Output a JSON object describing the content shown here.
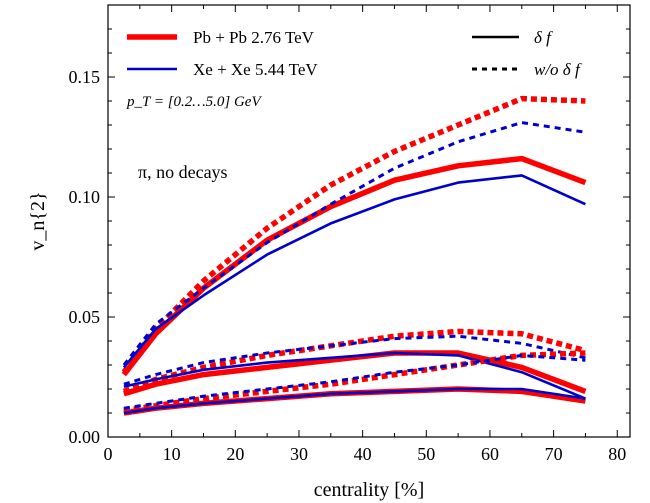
{
  "chart_data": {
    "type": "line",
    "xlabel": "centrality [%]",
    "ylabel": "v_n{2}",
    "xlim": [
      0,
      82
    ],
    "ylim": [
      0,
      0.18
    ],
    "xticks": [
      0,
      10,
      20,
      30,
      40,
      50,
      60,
      70,
      80
    ],
    "yticks": [
      0.0,
      0.05,
      0.1,
      0.15
    ],
    "ytick_labels": [
      "0.00",
      "0.05",
      "0.10",
      "0.15"
    ],
    "legend": {
      "placement": "top",
      "systems": [
        {
          "label": "Pb + Pb 2.76 TeV",
          "color": "#ff0000"
        },
        {
          "label": "Xe + Xe 5.44 TeV",
          "color": "#0000cc"
        }
      ],
      "styles": [
        {
          "label": "δ f",
          "style": "solid"
        },
        {
          "label": "w/o δ f",
          "style": "dashed"
        }
      ]
    },
    "annotations": {
      "pt_range": "p_T = [0.2…5.0] GeV",
      "particle": "π, no decays"
    },
    "x": [
      2.5,
      7.5,
      15,
      25,
      35,
      45,
      55,
      65,
      75
    ],
    "series": [
      {
        "system": "Pb + Pb 2.76 TeV",
        "style": "solid",
        "color": "#ff0000",
        "values": [
          0.026,
          0.043,
          0.062,
          0.082,
          0.096,
          0.107,
          0.113,
          0.116,
          0.106
        ]
      },
      {
        "system": "Pb + Pb 2.76 TeV",
        "style": "dashed",
        "color": "#ff0000",
        "values": [
          0.027,
          0.045,
          0.065,
          0.087,
          0.105,
          0.119,
          0.13,
          0.141,
          0.14
        ]
      },
      {
        "system": "Xe + Xe 5.44 TeV",
        "style": "solid",
        "color": "#0000cc",
        "values": [
          0.029,
          0.045,
          0.059,
          0.076,
          0.089,
          0.099,
          0.106,
          0.109,
          0.097
        ]
      },
      {
        "system": "Xe + Xe 5.44 TeV",
        "style": "dashed",
        "color": "#0000cc",
        "values": [
          0.03,
          0.047,
          0.062,
          0.081,
          0.097,
          0.112,
          0.123,
          0.131,
          0.127
        ]
      },
      {
        "system": "Pb + Pb 2.76 TeV",
        "style": "solid",
        "color": "#ff0000",
        "values": [
          0.018,
          0.022,
          0.026,
          0.029,
          0.032,
          0.035,
          0.035,
          0.029,
          0.019
        ]
      },
      {
        "system": "Pb + Pb 2.76 TeV",
        "style": "dashed",
        "color": "#ff0000",
        "values": [
          0.019,
          0.024,
          0.029,
          0.034,
          0.038,
          0.042,
          0.044,
          0.043,
          0.036
        ]
      },
      {
        "system": "Xe + Xe 5.44 TeV",
        "style": "solid",
        "color": "#0000cc",
        "values": [
          0.021,
          0.024,
          0.028,
          0.031,
          0.033,
          0.035,
          0.034,
          0.027,
          0.016
        ]
      },
      {
        "system": "Xe + Xe 5.44 TeV",
        "style": "dashed",
        "color": "#0000cc",
        "values": [
          0.022,
          0.026,
          0.031,
          0.035,
          0.038,
          0.041,
          0.042,
          0.039,
          0.033
        ]
      },
      {
        "system": "Pb + Pb 2.76 TeV",
        "style": "solid",
        "color": "#ff0000",
        "values": [
          0.01,
          0.012,
          0.014,
          0.016,
          0.018,
          0.019,
          0.02,
          0.019,
          0.015
        ]
      },
      {
        "system": "Pb + Pb 2.76 TeV",
        "style": "dashed",
        "color": "#ff0000",
        "values": [
          0.011,
          0.013,
          0.016,
          0.019,
          0.022,
          0.026,
          0.03,
          0.034,
          0.035
        ]
      },
      {
        "system": "Xe + Xe 5.44 TeV",
        "style": "solid",
        "color": "#0000cc",
        "values": [
          0.01,
          0.012,
          0.014,
          0.016,
          0.018,
          0.019,
          0.02,
          0.02,
          0.016
        ]
      },
      {
        "system": "Xe + Xe 5.44 TeV",
        "style": "dashed",
        "color": "#0000cc",
        "values": [
          0.012,
          0.014,
          0.017,
          0.02,
          0.023,
          0.027,
          0.03,
          0.034,
          0.032
        ]
      }
    ]
  }
}
